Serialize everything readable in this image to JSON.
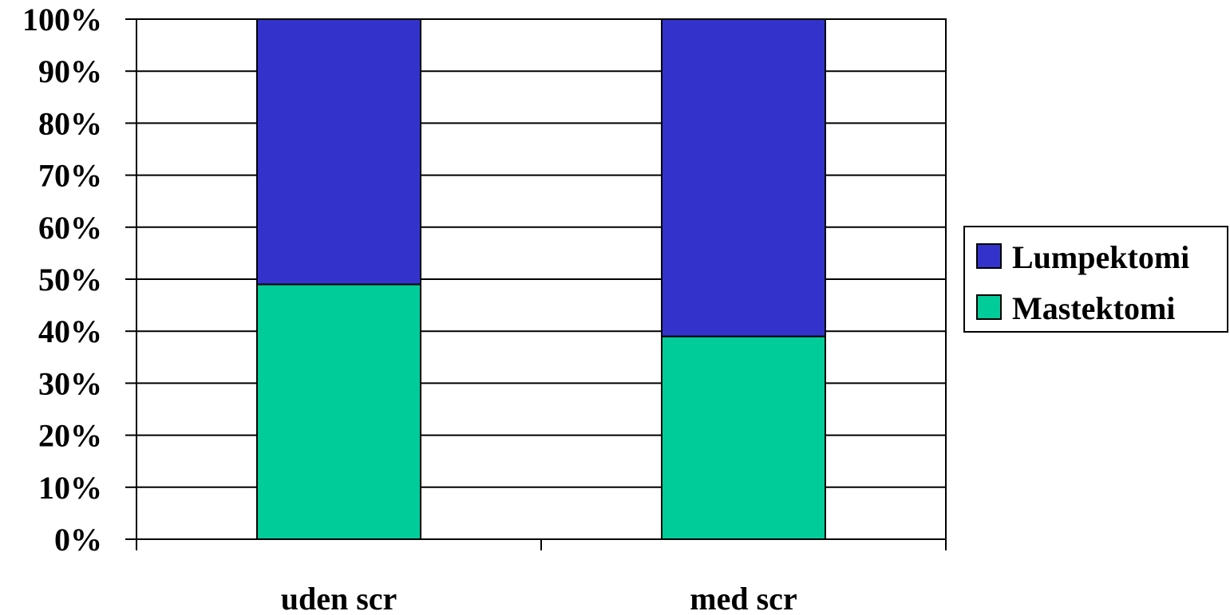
{
  "chart_data": {
    "type": "bar",
    "stacked": true,
    "percent_stacked": true,
    "categories": [
      "uden scr",
      "med scr"
    ],
    "series": [
      {
        "name": "Mastektomi",
        "values": [
          49,
          39
        ],
        "color": "#00CC99"
      },
      {
        "name": "Lumpektomi",
        "values": [
          51,
          61
        ],
        "color": "#3333CC"
      }
    ],
    "legend_order": [
      "Lumpektomi",
      "Mastektomi"
    ],
    "y_ticks": [
      "0%",
      "10%",
      "20%",
      "30%",
      "40%",
      "50%",
      "60%",
      "70%",
      "80%",
      "90%",
      "100%"
    ],
    "ylim": [
      0,
      100
    ],
    "grid": true,
    "legend_position": "right",
    "title": "",
    "xlabel": "",
    "ylabel": ""
  }
}
